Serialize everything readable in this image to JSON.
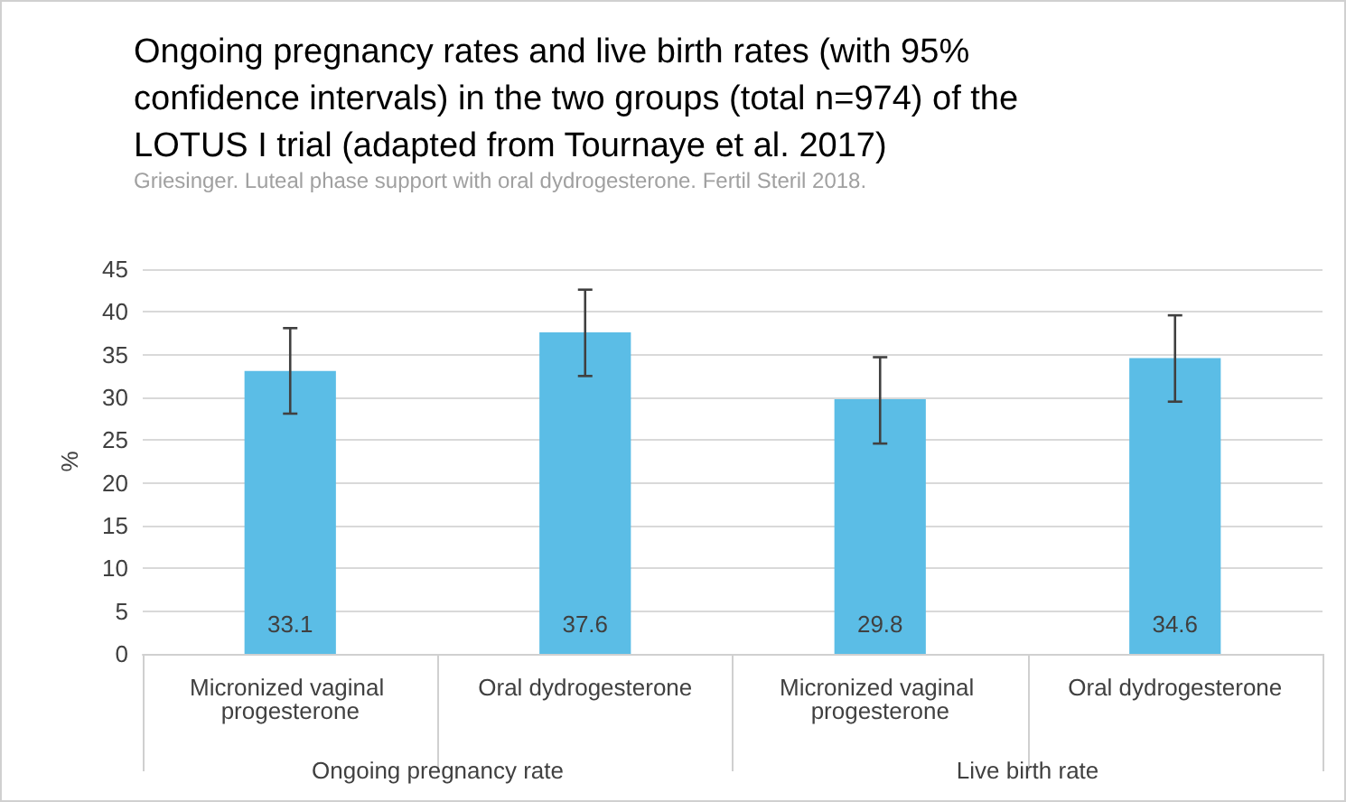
{
  "chart_data": {
    "type": "bar",
    "title": "Ongoing pregnancy rates and live birth rates (with 95%\nconfidence intervals) in the two groups (total n=974) of the\nLOTUS I trial (adapted from Tournaye et al. 2017)",
    "subtitle": "Griesinger. Luteal phase support with oral dydrogesterone. Fertil Steril 2018.",
    "ylabel": "%",
    "categories": [
      "Micronized vaginal progesterone",
      "Oral dydrogesterone",
      "Micronized vaginal progesterone",
      "Oral dydrogesterone"
    ],
    "annotations": [
      "Ongoing pregnancy rate",
      "Live birth rate"
    ],
    "values": [
      33.1,
      37.6,
      29.8,
      34.6
    ],
    "errors": [
      [
        28.1,
        38.1
      ],
      [
        32.5,
        42.6
      ],
      [
        24.6,
        34.7
      ],
      [
        29.5,
        39.6
      ]
    ],
    "color": "#5bbde6",
    "ylim": [
      0,
      45
    ],
    "yticks": [
      0,
      5,
      10,
      15,
      20,
      25,
      30,
      35,
      40,
      45
    ],
    "grid": "y",
    "data_labels": true
  }
}
